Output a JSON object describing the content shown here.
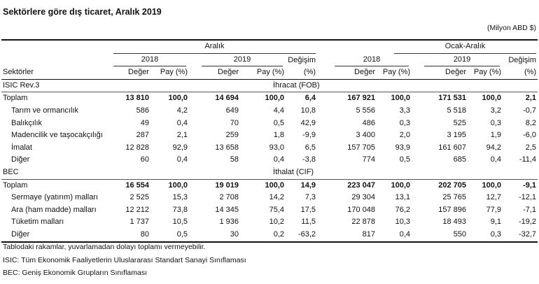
{
  "title": "Sektörlere göre dış ticaret, Aralık 2019",
  "unit": "(Milyon ABD $)",
  "header": {
    "period1": "Aralık",
    "period2": "Ocak-Aralık",
    "year1": "2018",
    "year2": "2019",
    "change_label": "Değişim",
    "change_unit": "(%)",
    "sector_label": "Sektörler",
    "value_label": "Değer",
    "share_label": "Pay (%)"
  },
  "sections": [
    {
      "code": "ISIC  Rev.3",
      "name": "İhracat (FOB)",
      "rows": [
        {
          "label": "Toplam",
          "total": true,
          "values": [
            "13 810",
            "100,0",
            "14 694",
            "100,0",
            "6,4",
            "167 921",
            "100,0",
            "171 531",
            "100,0",
            "2,1"
          ]
        },
        {
          "label": "Tarım ve ormancılık",
          "values": [
            "586",
            "4,2",
            "649",
            "4,4",
            "10,8",
            "5 556",
            "3,3",
            "5 518",
            "3,2",
            "-0,7"
          ]
        },
        {
          "label": "Balıkçılık",
          "values": [
            "49",
            "0,4",
            "70",
            "0,5",
            "42,9",
            "486",
            "0,3",
            "525",
            "0,3",
            "8,2"
          ]
        },
        {
          "label": "Madencilik ve taşocakçılığı",
          "values": [
            "287",
            "2,1",
            "259",
            "1,8",
            "-9,9",
            "3 400",
            "2,0",
            "3 195",
            "1,9",
            "-6,0"
          ]
        },
        {
          "label": "İmalat",
          "values": [
            "12 828",
            "92,9",
            "13 658",
            "93,0",
            "6,5",
            "157 705",
            "93,9",
            "161 607",
            "94,2",
            "2,5"
          ]
        },
        {
          "label": "Diğer",
          "values": [
            "60",
            "0,4",
            "58",
            "0,4",
            "-3,8",
            "774",
            "0,5",
            "685",
            "0,4",
            "-11,4"
          ]
        }
      ]
    },
    {
      "code": "BEC",
      "name": "İthalat (CIF)",
      "rows": [
        {
          "label": "Toplam",
          "total": true,
          "values": [
            "16 554",
            "100,0",
            "19 019",
            "100,0",
            "14,9",
            "223 047",
            "100,0",
            "202 705",
            "100,0",
            "-9,1"
          ]
        },
        {
          "label": "Sermaye (yatırım) malları",
          "values": [
            "2 525",
            "15,3",
            "2 708",
            "14,2",
            "7,3",
            "29 304",
            "13,1",
            "25 765",
            "12,7",
            "-12,1"
          ]
        },
        {
          "label": "Ara (ham madde) malları",
          "values": [
            "12 212",
            "73,8",
            "14 345",
            "75,4",
            "17,5",
            "170 048",
            "76,2",
            "157 896",
            "77,9",
            "-7,1"
          ]
        },
        {
          "label": "Tüketim malları",
          "values": [
            "1 737",
            "10,5",
            "1 936",
            "10,2",
            "11,5",
            "22 878",
            "10,3",
            "18 493",
            "9,1",
            "-19,2"
          ]
        },
        {
          "label": "Diğer",
          "values": [
            "80",
            "0,5",
            "30",
            "0,2",
            "-63,2",
            "817",
            "0,4",
            "550",
            "0,3",
            "-32,7"
          ]
        }
      ]
    }
  ],
  "notes": [
    "Tablodaki rakamlar, yuvarlamadan dolayı toplamı vermeyebilir.",
    "ISIC: Tüm Ekonomik Faaliyetlerin Uluslararası Standart Sanayi Sınıflaması",
    "BEC: Geniş Ekonomik Grupların Sınıflaması"
  ]
}
